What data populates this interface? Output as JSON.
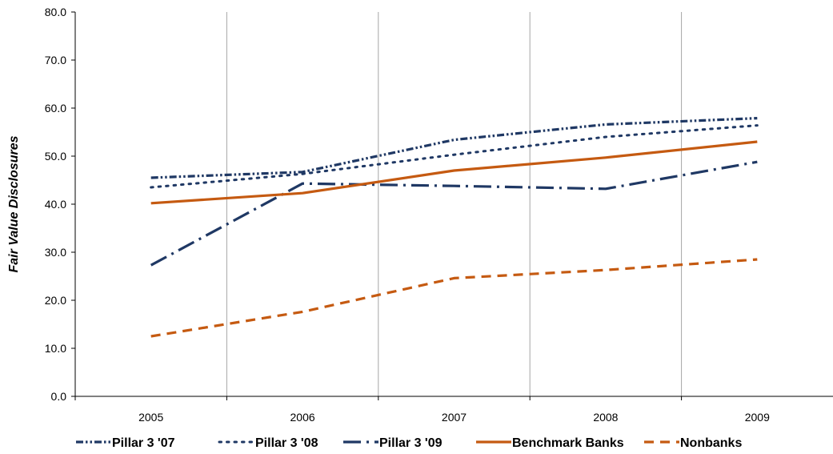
{
  "chart_data": {
    "type": "line",
    "title": "",
    "xlabel": "",
    "ylabel": "Fair Value Disclosures",
    "x": [
      "2005",
      "2006",
      "2007",
      "2008",
      "2009"
    ],
    "ylim": [
      0,
      80
    ],
    "yticks": [
      "0.0",
      "10.0",
      "20.0",
      "30.0",
      "40.0",
      "50.0",
      "60.0",
      "70.0",
      "80.0"
    ],
    "grid": "vertical",
    "legend_position": "bottom",
    "series": [
      {
        "name": "Pillar 3 '07",
        "values": [
          45.5,
          46.7,
          53.4,
          56.6,
          57.9
        ],
        "color": "#1f3864",
        "style": "dash-dot-dot"
      },
      {
        "name": "Pillar 3 '08",
        "values": [
          43.5,
          46.3,
          50.3,
          54.0,
          56.4
        ],
        "color": "#1f3864",
        "style": "dotted"
      },
      {
        "name": "Pillar 3 '09",
        "values": [
          27.3,
          44.3,
          43.8,
          43.2,
          48.8
        ],
        "color": "#1f3864",
        "style": "long-dash-dot"
      },
      {
        "name": "Benchmark Banks",
        "values": [
          40.2,
          42.3,
          47.0,
          49.7,
          53.0
        ],
        "color": "#c55a11",
        "style": "solid"
      },
      {
        "name": "Nonbanks",
        "values": [
          12.5,
          17.6,
          24.6,
          26.3,
          28.5
        ],
        "color": "#c55a11",
        "style": "dashed"
      }
    ]
  }
}
